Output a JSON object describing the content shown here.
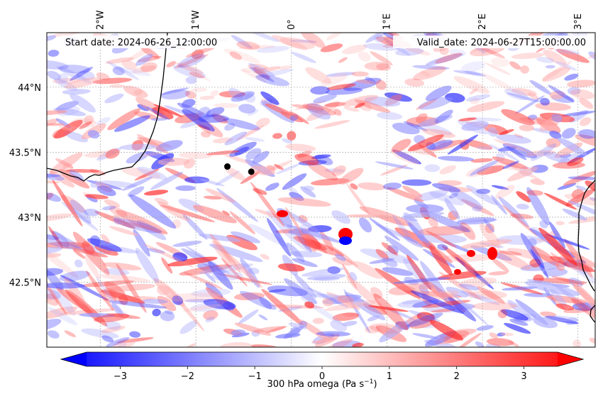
{
  "map": {
    "start_date": "Start date: 2024-06-26_12:00:00",
    "valid_date": "Valid_date: 2024-06-27T15:00:00.00",
    "lon_labels": [
      {
        "label": "2°W",
        "lon": -2
      },
      {
        "label": "1°W",
        "lon": -1
      },
      {
        "label": "0°",
        "lon": 0
      },
      {
        "label": "1°E",
        "lon": 1
      },
      {
        "label": "2°E",
        "lon": 2
      },
      {
        "label": "3°E",
        "lon": 3
      }
    ],
    "lat_labels": [
      {
        "label": "44°N",
        "lat": 44.0
      },
      {
        "label": "43.5°N",
        "lat": 43.5
      },
      {
        "label": "43°N",
        "lat": 43.0
      },
      {
        "label": "42.5°N",
        "lat": 42.5
      }
    ],
    "extent": {
      "lon_min": -2.56,
      "lon_max": 3.18,
      "lat_min": 42.0,
      "lat_max": 44.42
    },
    "markers": [
      {
        "name": "marker-1",
        "lon": -0.67,
        "lat": 43.39
      },
      {
        "name": "marker-2",
        "lon": -0.42,
        "lat": 43.35
      }
    ]
  },
  "colorbar": {
    "label": "300 hPa omega (Pa s",
    "label_sup": "−1",
    "label_close": ")",
    "vmin": -3.5,
    "vmax": 3.5,
    "ticks": [
      {
        "label": "−3",
        "value": -3
      },
      {
        "label": "−2",
        "value": -2
      },
      {
        "label": "−1",
        "value": -1
      },
      {
        "label": "0",
        "value": 0
      },
      {
        "label": "1",
        "value": 1
      },
      {
        "label": "2",
        "value": 2
      },
      {
        "label": "3",
        "value": 3
      }
    ],
    "colors": {
      "low": "#0000ff",
      "mid": "#ffffff",
      "high": "#ff0000"
    }
  }
}
